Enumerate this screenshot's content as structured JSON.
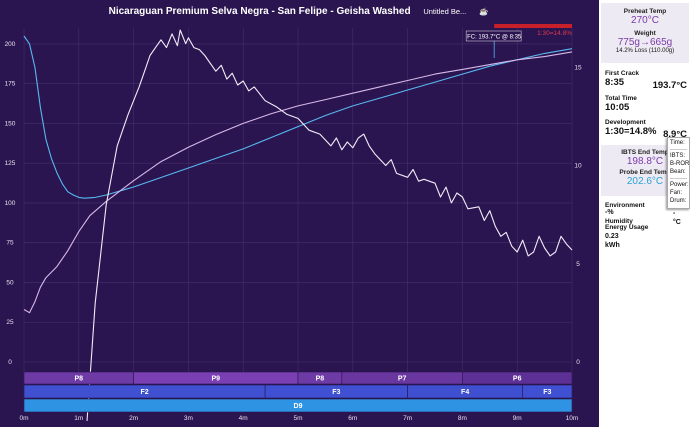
{
  "header": {
    "title": "Nicaraguan Premium Selva Negra - San Felipe - Geisha Washed",
    "subtitle": "Untitled Be..."
  },
  "chart_data": {
    "type": "line",
    "x_ticks": [
      "0m",
      "1m",
      "2m",
      "3m",
      "4m",
      "5m",
      "6m",
      "7m",
      "8m",
      "9m",
      "10m"
    ],
    "xlim": [
      0,
      10
    ],
    "y_left_ticks": [
      0,
      25,
      50,
      75,
      100,
      125,
      150,
      175,
      200
    ],
    "ylim_left": [
      0,
      210
    ],
    "y_right_ticks": [
      0,
      5,
      10,
      15
    ],
    "ylim_right": [
      0,
      17
    ],
    "series": [
      {
        "color": "#58b8f0",
        "points": [
          [
            0,
            205
          ],
          [
            0.1,
            200
          ],
          [
            0.2,
            185
          ],
          [
            0.3,
            160
          ],
          [
            0.4,
            140
          ],
          [
            0.5,
            128
          ],
          [
            0.6,
            119
          ],
          [
            0.7,
            112
          ],
          [
            0.8,
            107
          ],
          [
            0.9,
            105
          ],
          [
            1.0,
            103.5
          ],
          [
            1.1,
            103
          ],
          [
            1.3,
            103.5
          ],
          [
            1.5,
            105
          ],
          [
            2.0,
            110
          ],
          [
            2.5,
            116
          ],
          [
            3.0,
            122
          ],
          [
            3.5,
            128
          ],
          [
            4.0,
            134
          ],
          [
            4.5,
            141
          ],
          [
            5.0,
            148
          ],
          [
            5.5,
            155
          ],
          [
            6.0,
            161
          ],
          [
            6.5,
            166
          ],
          [
            7.0,
            171
          ],
          [
            7.5,
            176
          ],
          [
            8.0,
            181
          ],
          [
            8.5,
            186
          ],
          [
            9.0,
            190
          ],
          [
            9.5,
            194
          ],
          [
            10.0,
            197
          ]
        ]
      },
      {
        "color": "#d8b8e8",
        "points": [
          [
            0,
            33
          ],
          [
            0.1,
            31
          ],
          [
            0.2,
            38
          ],
          [
            0.3,
            47
          ],
          [
            0.4,
            53
          ],
          [
            0.6,
            60
          ],
          [
            0.8,
            70
          ],
          [
            1.0,
            82
          ],
          [
            1.2,
            92
          ],
          [
            1.5,
            101
          ],
          [
            2.0,
            114
          ],
          [
            2.5,
            126
          ],
          [
            3.0,
            135
          ],
          [
            3.5,
            143
          ],
          [
            4.0,
            150
          ],
          [
            4.5,
            156
          ],
          [
            5.0,
            161
          ],
          [
            5.5,
            165
          ],
          [
            6.0,
            169
          ],
          [
            6.5,
            173
          ],
          [
            7.0,
            177
          ],
          [
            7.5,
            181
          ],
          [
            8.0,
            184
          ],
          [
            8.5,
            187
          ],
          [
            9.0,
            190
          ],
          [
            9.5,
            192
          ],
          [
            10.0,
            195
          ]
        ]
      },
      {
        "color": "#f3ecf8",
        "axis": "right",
        "points": [
          [
            1.15,
            -3
          ],
          [
            1.3,
            3
          ],
          [
            1.5,
            8
          ],
          [
            1.7,
            11
          ],
          [
            1.9,
            12.6
          ],
          [
            2.1,
            14
          ],
          [
            2.2,
            14.8
          ],
          [
            2.3,
            15.6
          ],
          [
            2.4,
            16.0
          ],
          [
            2.5,
            16.4
          ],
          [
            2.6,
            16.0
          ],
          [
            2.7,
            16.7
          ],
          [
            2.8,
            16.1
          ],
          [
            2.85,
            16.9
          ],
          [
            2.95,
            16.2
          ],
          [
            3.0,
            16.5
          ],
          [
            3.1,
            16.0
          ],
          [
            3.2,
            15.9
          ],
          [
            3.3,
            15.6
          ],
          [
            3.5,
            14.8
          ],
          [
            3.6,
            15.1
          ],
          [
            3.7,
            14.4
          ],
          [
            3.8,
            14.7
          ],
          [
            3.9,
            14.1
          ],
          [
            4.0,
            14.3
          ],
          [
            4.1,
            13.8
          ],
          [
            4.2,
            14.0
          ],
          [
            4.4,
            13.3
          ],
          [
            4.6,
            13.0
          ],
          [
            4.8,
            12.6
          ],
          [
            5.0,
            12.4
          ],
          [
            5.2,
            11.8
          ],
          [
            5.4,
            11.6
          ],
          [
            5.6,
            11.0
          ],
          [
            5.7,
            11.4
          ],
          [
            5.8,
            10.8
          ],
          [
            5.9,
            11.2
          ],
          [
            6.0,
            10.9
          ],
          [
            6.1,
            11.4
          ],
          [
            6.2,
            11.6
          ],
          [
            6.3,
            11.0
          ],
          [
            6.4,
            10.6
          ],
          [
            6.6,
            10.0
          ],
          [
            6.7,
            10.3
          ],
          [
            6.8,
            9.6
          ],
          [
            7.0,
            9.4
          ],
          [
            7.1,
            9.8
          ],
          [
            7.2,
            9.2
          ],
          [
            7.3,
            9.3
          ],
          [
            7.5,
            9.1
          ],
          [
            7.6,
            8.4
          ],
          [
            7.7,
            8.9
          ],
          [
            7.8,
            8.1
          ],
          [
            7.9,
            8.6
          ],
          [
            8.0,
            8.4
          ],
          [
            8.1,
            7.8
          ],
          [
            8.3,
            7.9
          ],
          [
            8.4,
            7.2
          ],
          [
            8.5,
            7.7
          ],
          [
            8.6,
            6.9
          ],
          [
            8.7,
            6.4
          ],
          [
            8.8,
            6.6
          ],
          [
            8.9,
            5.9
          ],
          [
            9.0,
            5.6
          ],
          [
            9.1,
            6.2
          ],
          [
            9.2,
            5.4
          ],
          [
            9.3,
            5.6
          ],
          [
            9.4,
            6.4
          ],
          [
            9.5,
            5.8
          ],
          [
            9.6,
            5.4
          ],
          [
            9.7,
            5.6
          ],
          [
            9.8,
            6.4
          ],
          [
            9.9,
            6.0
          ],
          [
            10.0,
            5.7
          ]
        ]
      }
    ],
    "annotations": {
      "fc_label": "FC: 193.7°C @ 8:35",
      "fc_time": 8.58,
      "dev_label": "1:30=14.8%",
      "dev_bar": [
        8.58,
        10.0
      ]
    },
    "phase_rows": [
      {
        "y": 372,
        "h": 12,
        "segments": [
          {
            "start": 0,
            "end": 2.0,
            "label": "P8",
            "color": "#6e3aa6"
          },
          {
            "start": 2.0,
            "end": 5.0,
            "label": "P9",
            "color": "#7a3fb2"
          },
          {
            "start": 5.0,
            "end": 5.8,
            "label": "P8",
            "color": "#6e3aa6"
          },
          {
            "start": 5.8,
            "end": 8.0,
            "label": "P7",
            "color": "#6a36a0"
          },
          {
            "start": 8.0,
            "end": 10.0,
            "label": "P6",
            "color": "#5d3096"
          }
        ]
      },
      {
        "y": 385,
        "h": 13,
        "segments": [
          {
            "start": 0,
            "end": 4.4,
            "label": "F2",
            "color": "#3f50d0"
          },
          {
            "start": 4.4,
            "end": 7.0,
            "label": "F3",
            "color": "#4050d2"
          },
          {
            "start": 7.0,
            "end": 9.1,
            "label": "F4",
            "color": "#3e4fcf"
          },
          {
            "start": 9.1,
            "end": 10.0,
            "label": "F3",
            "color": "#4050d2"
          }
        ]
      },
      {
        "y": 399,
        "h": 13,
        "segments": [
          {
            "start": 0,
            "end": 10.0,
            "label": "D9",
            "color": "#2d93e2"
          }
        ]
      }
    ]
  },
  "side_panel": {
    "preheat_label": "Preheat Temp",
    "preheat_value": "270°C",
    "weight_label": "Weight",
    "weight_value": "775g→665g",
    "weight_loss": "14.2% Loss (110.00g)",
    "first_crack_label": "First Crack",
    "first_crack_time": "8:35",
    "first_crack_temp": "193.7°C",
    "total_time_label": "Total Time",
    "total_time_value": "10:05",
    "development_label": "Development",
    "development_value": "1:30=14.8%",
    "development_extra": "8.9°C",
    "ibts_end_label": "IBTS End Temp",
    "ibts_end_value": "198.8°C",
    "probe_end_label": "Probe End Temp",
    "probe_end_value": "202.6°C",
    "environment_label": "Environment",
    "environment_value": "-%",
    "environment_dash": "-",
    "environment_unit": "°C",
    "humidity_label": "Humidity",
    "energy_label": "Energy Usage",
    "energy_value": "0.23",
    "energy_unit": "kWh"
  },
  "tooltip": {
    "time": "Time:",
    "ibts": "IBTS:",
    "ror": "B-ROR",
    "bean": "Bean:",
    "power": "Power:",
    "fan": "Fan:",
    "drum": "Drum:"
  },
  "colors": {
    "background": "#2a1550",
    "grid": "#45306a",
    "ibts_line": "#58b8f0",
    "bean_line": "#d8b8e8",
    "ror_line": "#f3ecf8",
    "dev_bar": "#c8202a"
  }
}
